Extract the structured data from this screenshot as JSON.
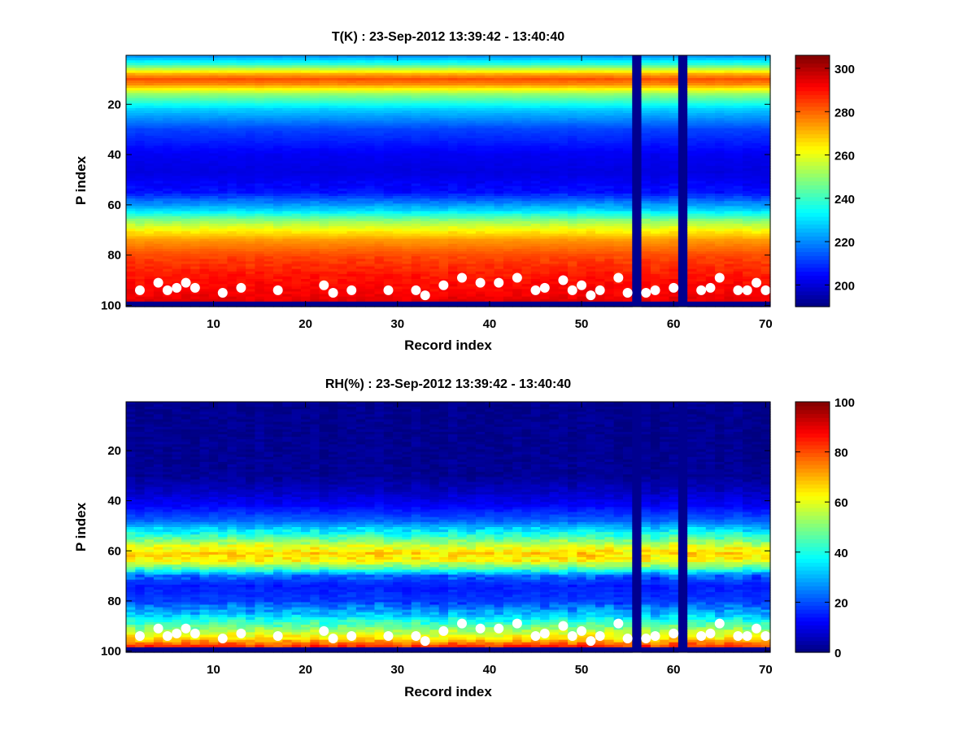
{
  "figure": {
    "background": "#ffffff",
    "colormap": "jet",
    "missing_color": "#00008f",
    "marker_color": "#ffffff"
  },
  "chart_data": [
    {
      "type": "heatmap",
      "title": "T(K) : 23-Sep-2012 13:39:42 - 13:40:40",
      "xlabel": "Record index",
      "ylabel": "P index",
      "xlim": [
        1,
        70
      ],
      "ylim": [
        100,
        1
      ],
      "y_reversed": true,
      "xticks": [
        10,
        20,
        30,
        40,
        50,
        60,
        70
      ],
      "yticks": [
        20,
        40,
        60,
        80,
        100
      ],
      "colorbar": {
        "clim": [
          190,
          306
        ],
        "ticks": [
          200,
          220,
          240,
          260,
          280,
          300
        ]
      },
      "missing_records": [
        56,
        61
      ],
      "profile_anchors": {
        "p_index": [
          1,
          4,
          8,
          10,
          12,
          16,
          22,
          30,
          40,
          47,
          55,
          62,
          66,
          70,
          74,
          80,
          88,
          95,
          98
        ],
        "value": [
          222,
          238,
          272,
          282,
          276,
          250,
          228,
          212,
          203,
          201,
          206,
          228,
          248,
          262,
          274,
          283,
          289,
          292,
          294
        ]
      },
      "markers": [
        {
          "record": 2,
          "p_index": 94
        },
        {
          "record": 4,
          "p_index": 91
        },
        {
          "record": 5,
          "p_index": 94
        },
        {
          "record": 6,
          "p_index": 93
        },
        {
          "record": 7,
          "p_index": 91
        },
        {
          "record": 8,
          "p_index": 93
        },
        {
          "record": 11,
          "p_index": 95
        },
        {
          "record": 13,
          "p_index": 93
        },
        {
          "record": 17,
          "p_index": 94
        },
        {
          "record": 22,
          "p_index": 92
        },
        {
          "record": 23,
          "p_index": 95
        },
        {
          "record": 25,
          "p_index": 94
        },
        {
          "record": 29,
          "p_index": 94
        },
        {
          "record": 32,
          "p_index": 94
        },
        {
          "record": 33,
          "p_index": 96
        },
        {
          "record": 35,
          "p_index": 92
        },
        {
          "record": 37,
          "p_index": 89
        },
        {
          "record": 39,
          "p_index": 91
        },
        {
          "record": 41,
          "p_index": 91
        },
        {
          "record": 43,
          "p_index": 89
        },
        {
          "record": 45,
          "p_index": 94
        },
        {
          "record": 46,
          "p_index": 93
        },
        {
          "record": 48,
          "p_index": 90
        },
        {
          "record": 49,
          "p_index": 94
        },
        {
          "record": 50,
          "p_index": 92
        },
        {
          "record": 51,
          "p_index": 96
        },
        {
          "record": 52,
          "p_index": 94
        },
        {
          "record": 54,
          "p_index": 89
        },
        {
          "record": 55,
          "p_index": 95
        },
        {
          "record": 57,
          "p_index": 95
        },
        {
          "record": 58,
          "p_index": 94
        },
        {
          "record": 60,
          "p_index": 93
        },
        {
          "record": 63,
          "p_index": 94
        },
        {
          "record": 64,
          "p_index": 93
        },
        {
          "record": 65,
          "p_index": 89
        },
        {
          "record": 67,
          "p_index": 94
        },
        {
          "record": 68,
          "p_index": 94
        },
        {
          "record": 69,
          "p_index": 91
        },
        {
          "record": 70,
          "p_index": 94
        }
      ]
    },
    {
      "type": "heatmap",
      "title": "RH(%) : 23-Sep-2012 13:39:42 - 13:40:40",
      "xlabel": "Record index",
      "ylabel": "P index",
      "xlim": [
        1,
        70
      ],
      "ylim": [
        100,
        1
      ],
      "y_reversed": true,
      "xticks": [
        10,
        20,
        30,
        40,
        50,
        60,
        70
      ],
      "yticks": [
        20,
        40,
        60,
        80,
        100
      ],
      "colorbar": {
        "clim": [
          0,
          100
        ],
        "ticks": [
          0,
          20,
          40,
          60,
          80,
          100
        ]
      },
      "missing_records": [
        56,
        61
      ],
      "profile_anchors": {
        "p_index": [
          1,
          30,
          36,
          42,
          48,
          54,
          58,
          61,
          64,
          67,
          70,
          74,
          80,
          85,
          88,
          91,
          95,
          98
        ],
        "value": [
          1,
          2,
          6,
          12,
          22,
          42,
          58,
          66,
          62,
          45,
          22,
          15,
          18,
          30,
          40,
          50,
          65,
          82
        ]
      },
      "markers": [
        {
          "record": 2,
          "p_index": 94
        },
        {
          "record": 4,
          "p_index": 91
        },
        {
          "record": 5,
          "p_index": 94
        },
        {
          "record": 6,
          "p_index": 93
        },
        {
          "record": 7,
          "p_index": 91
        },
        {
          "record": 8,
          "p_index": 93
        },
        {
          "record": 11,
          "p_index": 95
        },
        {
          "record": 13,
          "p_index": 93
        },
        {
          "record": 17,
          "p_index": 94
        },
        {
          "record": 22,
          "p_index": 92
        },
        {
          "record": 23,
          "p_index": 95
        },
        {
          "record": 25,
          "p_index": 94
        },
        {
          "record": 29,
          "p_index": 94
        },
        {
          "record": 32,
          "p_index": 94
        },
        {
          "record": 33,
          "p_index": 96
        },
        {
          "record": 35,
          "p_index": 92
        },
        {
          "record": 37,
          "p_index": 89
        },
        {
          "record": 39,
          "p_index": 91
        },
        {
          "record": 41,
          "p_index": 91
        },
        {
          "record": 43,
          "p_index": 89
        },
        {
          "record": 45,
          "p_index": 94
        },
        {
          "record": 46,
          "p_index": 93
        },
        {
          "record": 48,
          "p_index": 90
        },
        {
          "record": 49,
          "p_index": 94
        },
        {
          "record": 50,
          "p_index": 92
        },
        {
          "record": 51,
          "p_index": 96
        },
        {
          "record": 52,
          "p_index": 94
        },
        {
          "record": 54,
          "p_index": 89
        },
        {
          "record": 55,
          "p_index": 95
        },
        {
          "record": 57,
          "p_index": 95
        },
        {
          "record": 58,
          "p_index": 94
        },
        {
          "record": 60,
          "p_index": 93
        },
        {
          "record": 63,
          "p_index": 94
        },
        {
          "record": 64,
          "p_index": 93
        },
        {
          "record": 65,
          "p_index": 89
        },
        {
          "record": 67,
          "p_index": 94
        },
        {
          "record": 68,
          "p_index": 94
        },
        {
          "record": 69,
          "p_index": 91
        },
        {
          "record": 70,
          "p_index": 94
        }
      ]
    }
  ]
}
